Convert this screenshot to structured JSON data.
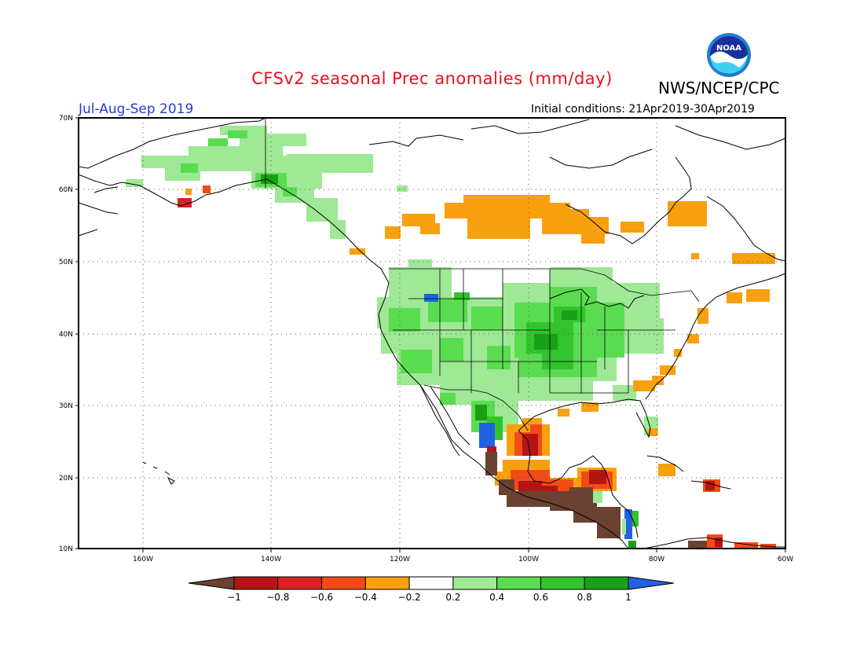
{
  "header": {
    "title": "CFSv2 seasonal Prec anomalies (mm/day)",
    "org": "NWS/NCEP/CPC",
    "season": "Jul-Aug-Sep 2019",
    "initial_conditions": "Initial conditions: 21Apr2019-30Apr2019",
    "logo_text": "NOAA"
  },
  "map": {
    "lat_labels": [
      "70N",
      "60N",
      "50N",
      "40N",
      "30N",
      "20N",
      "10N"
    ],
    "lon_labels": [
      "160W",
      "140W",
      "120W",
      "100W",
      "80W",
      "60W"
    ],
    "grid": true,
    "extent": {
      "lon_min": -172,
      "lon_max": -60,
      "lat_min": 10,
      "lat_max": 70
    }
  },
  "legend": {
    "tick_labels": [
      "-1",
      "-0.8",
      "-0.6",
      "-0.4",
      "-0.2",
      "0.2",
      "0.4",
      "0.6",
      "0.8",
      "1"
    ],
    "colors": [
      "#6b4131",
      "#b41414",
      "#d72323",
      "#f34b18",
      "#f8a00e",
      "#ffffff",
      "#9ee896",
      "#5adc50",
      "#32c32d",
      "#16a116",
      "#2162e3"
    ],
    "bins": [
      "< -1",
      "-1 to -0.8",
      "-0.8 to -0.6",
      "-0.6 to -0.4",
      "-0.4 to -0.2",
      "-0.2 to 0.2",
      "0.2 to 0.4",
      "0.4 to 0.6",
      "0.6 to 0.8",
      "0.8 to 1",
      "> 1"
    ]
  }
}
